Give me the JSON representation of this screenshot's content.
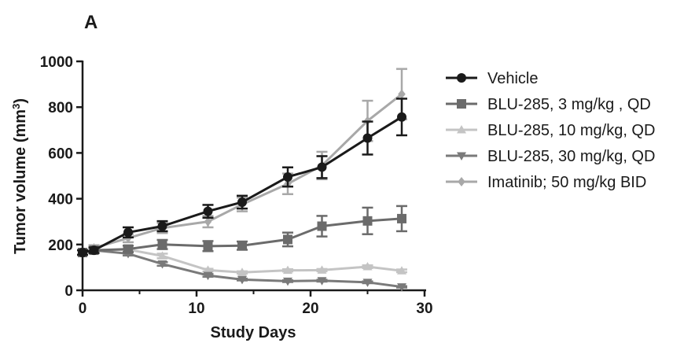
{
  "panel_label": "A",
  "chart_data": {
    "type": "line",
    "xlabel": "Study Days",
    "ylabel_main": "Tumor volume (mm",
    "ylabel_sup": "3",
    "ylabel_end": ")",
    "xlim": [
      0,
      30
    ],
    "ylim": [
      0,
      1000
    ],
    "xticks": [
      0,
      10,
      20,
      30
    ],
    "yticks": [
      0,
      200,
      400,
      600,
      800,
      1000
    ],
    "grid": false,
    "legend_position": "right",
    "series": [
      {
        "name": "Vehicle",
        "marker": "circle",
        "color": "#1a1a1a",
        "points": [
          {
            "x": 0,
            "y": 165,
            "err": 10
          },
          {
            "x": 1,
            "y": 175,
            "err": 12
          },
          {
            "x": 4,
            "y": 253,
            "err": 22
          },
          {
            "x": 7,
            "y": 280,
            "err": 22
          },
          {
            "x": 11,
            "y": 345,
            "err": 28
          },
          {
            "x": 14,
            "y": 385,
            "err": 28
          },
          {
            "x": 18,
            "y": 495,
            "err": 42
          },
          {
            "x": 21,
            "y": 538,
            "err": 48
          },
          {
            "x": 25,
            "y": 665,
            "err": 72
          },
          {
            "x": 28,
            "y": 757,
            "err": 80
          }
        ]
      },
      {
        "name": "BLU-285, 3 mg/kg , QD",
        "marker": "square",
        "color": "#6b6b6b",
        "points": [
          {
            "x": 0,
            "y": 165,
            "err": 10
          },
          {
            "x": 1,
            "y": 175,
            "err": 12
          },
          {
            "x": 4,
            "y": 180,
            "err": 15
          },
          {
            "x": 7,
            "y": 200,
            "err": 20
          },
          {
            "x": 11,
            "y": 193,
            "err": 22
          },
          {
            "x": 14,
            "y": 195,
            "err": 18
          },
          {
            "x": 18,
            "y": 222,
            "err": 30
          },
          {
            "x": 21,
            "y": 280,
            "err": 45
          },
          {
            "x": 25,
            "y": 303,
            "err": 58
          },
          {
            "x": 28,
            "y": 313,
            "err": 55
          }
        ]
      },
      {
        "name": "BLU-285, 10 mg/kg, QD",
        "marker": "triangle-up",
        "color": "#c4c4c4",
        "points": [
          {
            "x": 0,
            "y": 165,
            "err": 10
          },
          {
            "x": 1,
            "y": 175,
            "err": 12
          },
          {
            "x": 4,
            "y": 178,
            "err": 10
          },
          {
            "x": 7,
            "y": 150,
            "err": 10
          },
          {
            "x": 11,
            "y": 88,
            "err": 6
          },
          {
            "x": 14,
            "y": 78,
            "err": 5
          },
          {
            "x": 18,
            "y": 87,
            "err": 5
          },
          {
            "x": 21,
            "y": 88,
            "err": 5
          },
          {
            "x": 25,
            "y": 103,
            "err": 6
          },
          {
            "x": 28,
            "y": 85,
            "err": 6
          }
        ]
      },
      {
        "name": "BLU-285, 30 mg/kg, QD",
        "marker": "triangle-down",
        "color": "#7a7a7a",
        "points": [
          {
            "x": 0,
            "y": 165,
            "err": 10
          },
          {
            "x": 1,
            "y": 175,
            "err": 12
          },
          {
            "x": 4,
            "y": 160,
            "err": 8
          },
          {
            "x": 7,
            "y": 115,
            "err": 8
          },
          {
            "x": 11,
            "y": 65,
            "err": 6
          },
          {
            "x": 14,
            "y": 47,
            "err": 4
          },
          {
            "x": 18,
            "y": 40,
            "err": 4
          },
          {
            "x": 21,
            "y": 42,
            "err": 4
          },
          {
            "x": 25,
            "y": 35,
            "err": 4
          },
          {
            "x": 28,
            "y": 15,
            "err": 3
          }
        ]
      },
      {
        "name": "Imatinib; 50 mg/kg  BID",
        "marker": "diamond",
        "color": "#a8a8a8",
        "points": [
          {
            "x": 0,
            "y": 165,
            "err": 10
          },
          {
            "x": 1,
            "y": 185,
            "err": 12
          },
          {
            "x": 4,
            "y": 228,
            "err": 18
          },
          {
            "x": 7,
            "y": 272,
            "err": 22
          },
          {
            "x": 11,
            "y": 300,
            "err": 25
          },
          {
            "x": 14,
            "y": 375,
            "err": 30
          },
          {
            "x": 18,
            "y": 465,
            "err": 45
          },
          {
            "x": 21,
            "y": 545,
            "err": 60
          },
          {
            "x": 25,
            "y": 740,
            "err": 88
          },
          {
            "x": 28,
            "y": 857,
            "err": 110
          }
        ]
      }
    ]
  }
}
